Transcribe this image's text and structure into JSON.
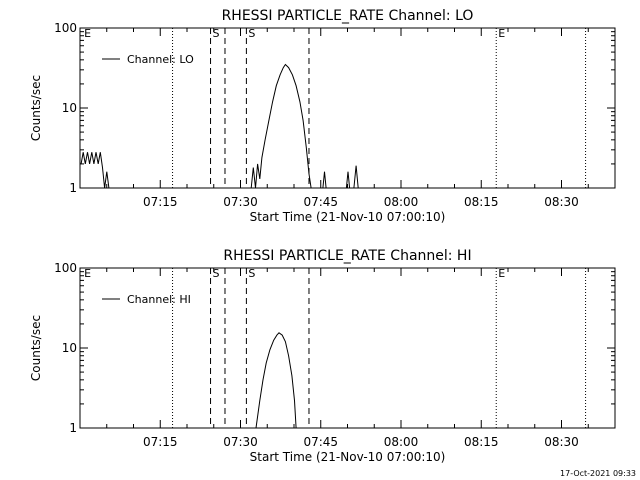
{
  "footer_timestamp": "17-Oct-2021 09:33",
  "colors": {
    "background": "#ffffff",
    "foreground": "#000000"
  },
  "chart_data": [
    {
      "type": "line",
      "title": "RHESSI PARTICLE_RATE Channel: LO",
      "xlabel": "Start Time (21-Nov-10 07:00:10)",
      "ylabel": "Counts/sec",
      "scale_y": "log",
      "ylim": [
        1,
        100
      ],
      "xlim_minutes": [
        0,
        100
      ],
      "x_ticks": [
        15,
        30,
        45,
        60,
        75,
        90
      ],
      "x_tick_labels": [
        "07:15",
        "07:30",
        "07:45",
        "08:00",
        "08:15",
        "08:30"
      ],
      "y_tick_labels": [
        "1",
        "10",
        "100"
      ],
      "legend": {
        "position": "top-left",
        "entries": [
          "Channel: LO"
        ]
      },
      "series": [
        {
          "name": "Channel: LO",
          "points": [
            [
              0.2,
              2.0
            ],
            [
              0.6,
              2.8
            ],
            [
              1.0,
              2.0
            ],
            [
              1.4,
              2.8
            ],
            [
              1.8,
              2.0
            ],
            [
              2.2,
              2.8
            ],
            [
              2.6,
              2.0
            ],
            [
              3.0,
              2.8
            ],
            [
              3.4,
              2.0
            ],
            [
              3.8,
              2.8
            ],
            [
              4.2,
              1.8
            ],
            [
              4.6,
              1.0
            ],
            [
              5.0,
              1.6
            ],
            [
              5.4,
              1.0
            ],
            [
              32.0,
              1.0
            ],
            [
              32.4,
              1.8
            ],
            [
              32.8,
              1.0
            ],
            [
              33.2,
              2.0
            ],
            [
              33.6,
              1.3
            ],
            [
              34.0,
              2.4
            ],
            [
              34.6,
              4
            ],
            [
              35.3,
              7
            ],
            [
              36.0,
              12
            ],
            [
              36.7,
              19
            ],
            [
              37.4,
              26
            ],
            [
              38.0,
              32
            ],
            [
              38.4,
              35
            ],
            [
              39.0,
              32
            ],
            [
              39.7,
              26
            ],
            [
              40.4,
              19
            ],
            [
              41.1,
              12
            ],
            [
              41.7,
              7
            ],
            [
              42.3,
              3.2
            ],
            [
              42.8,
              1.5
            ],
            [
              43.2,
              1.0
            ],
            [
              45.4,
              1.0
            ],
            [
              45.7,
              1.6
            ],
            [
              46.0,
              1.0
            ],
            [
              49.8,
              1.0
            ],
            [
              50.1,
              1.6
            ],
            [
              50.4,
              1.0
            ],
            [
              51.2,
              1.0
            ],
            [
              51.6,
              1.9
            ],
            [
              52.0,
              1.0
            ]
          ]
        }
      ],
      "vlines_dotted": [
        17.3,
        77.8,
        94.5
      ],
      "vlines_dashed": [
        24.4,
        27.1,
        31.1,
        42.8
      ],
      "markers": [
        {
          "label": "E",
          "x": 0.4
        },
        {
          "label": "S",
          "x": 24.4
        },
        {
          "label": "S",
          "x": 31.1
        },
        {
          "label": "E",
          "x": 77.8
        }
      ]
    },
    {
      "type": "line",
      "title": "RHESSI PARTICLE_RATE Channel: HI",
      "xlabel": "Start Time (21-Nov-10 07:00:10)",
      "ylabel": "Counts/sec",
      "scale_y": "log",
      "ylim": [
        1,
        100
      ],
      "xlim_minutes": [
        0,
        100
      ],
      "x_ticks": [
        15,
        30,
        45,
        60,
        75,
        90
      ],
      "x_tick_labels": [
        "07:15",
        "07:30",
        "07:45",
        "08:00",
        "08:15",
        "08:30"
      ],
      "y_tick_labels": [
        "1",
        "10",
        "100"
      ],
      "legend": {
        "position": "top-left",
        "entries": [
          "Channel: HI"
        ]
      },
      "series": [
        {
          "name": "Channel: HI",
          "points": [
            [
              32.9,
              1.0
            ],
            [
              33.6,
              2.2
            ],
            [
              34.2,
              4.0
            ],
            [
              34.8,
              6.5
            ],
            [
              35.5,
              9.5
            ],
            [
              36.2,
              12.5
            ],
            [
              36.8,
              14.5
            ],
            [
              37.2,
              15.5
            ],
            [
              37.8,
              14.5
            ],
            [
              38.4,
              12
            ],
            [
              39.0,
              8
            ],
            [
              39.6,
              4.5
            ],
            [
              40.1,
              2.2
            ],
            [
              40.4,
              1.0
            ]
          ]
        }
      ],
      "vlines_dotted": [
        17.3,
        77.8,
        94.5
      ],
      "vlines_dashed": [
        24.4,
        27.1,
        31.1,
        42.8
      ],
      "markers": [
        {
          "label": "E",
          "x": 0.4
        },
        {
          "label": "S",
          "x": 24.4
        },
        {
          "label": "S",
          "x": 31.1
        },
        {
          "label": "E",
          "x": 77.8
        }
      ]
    }
  ]
}
